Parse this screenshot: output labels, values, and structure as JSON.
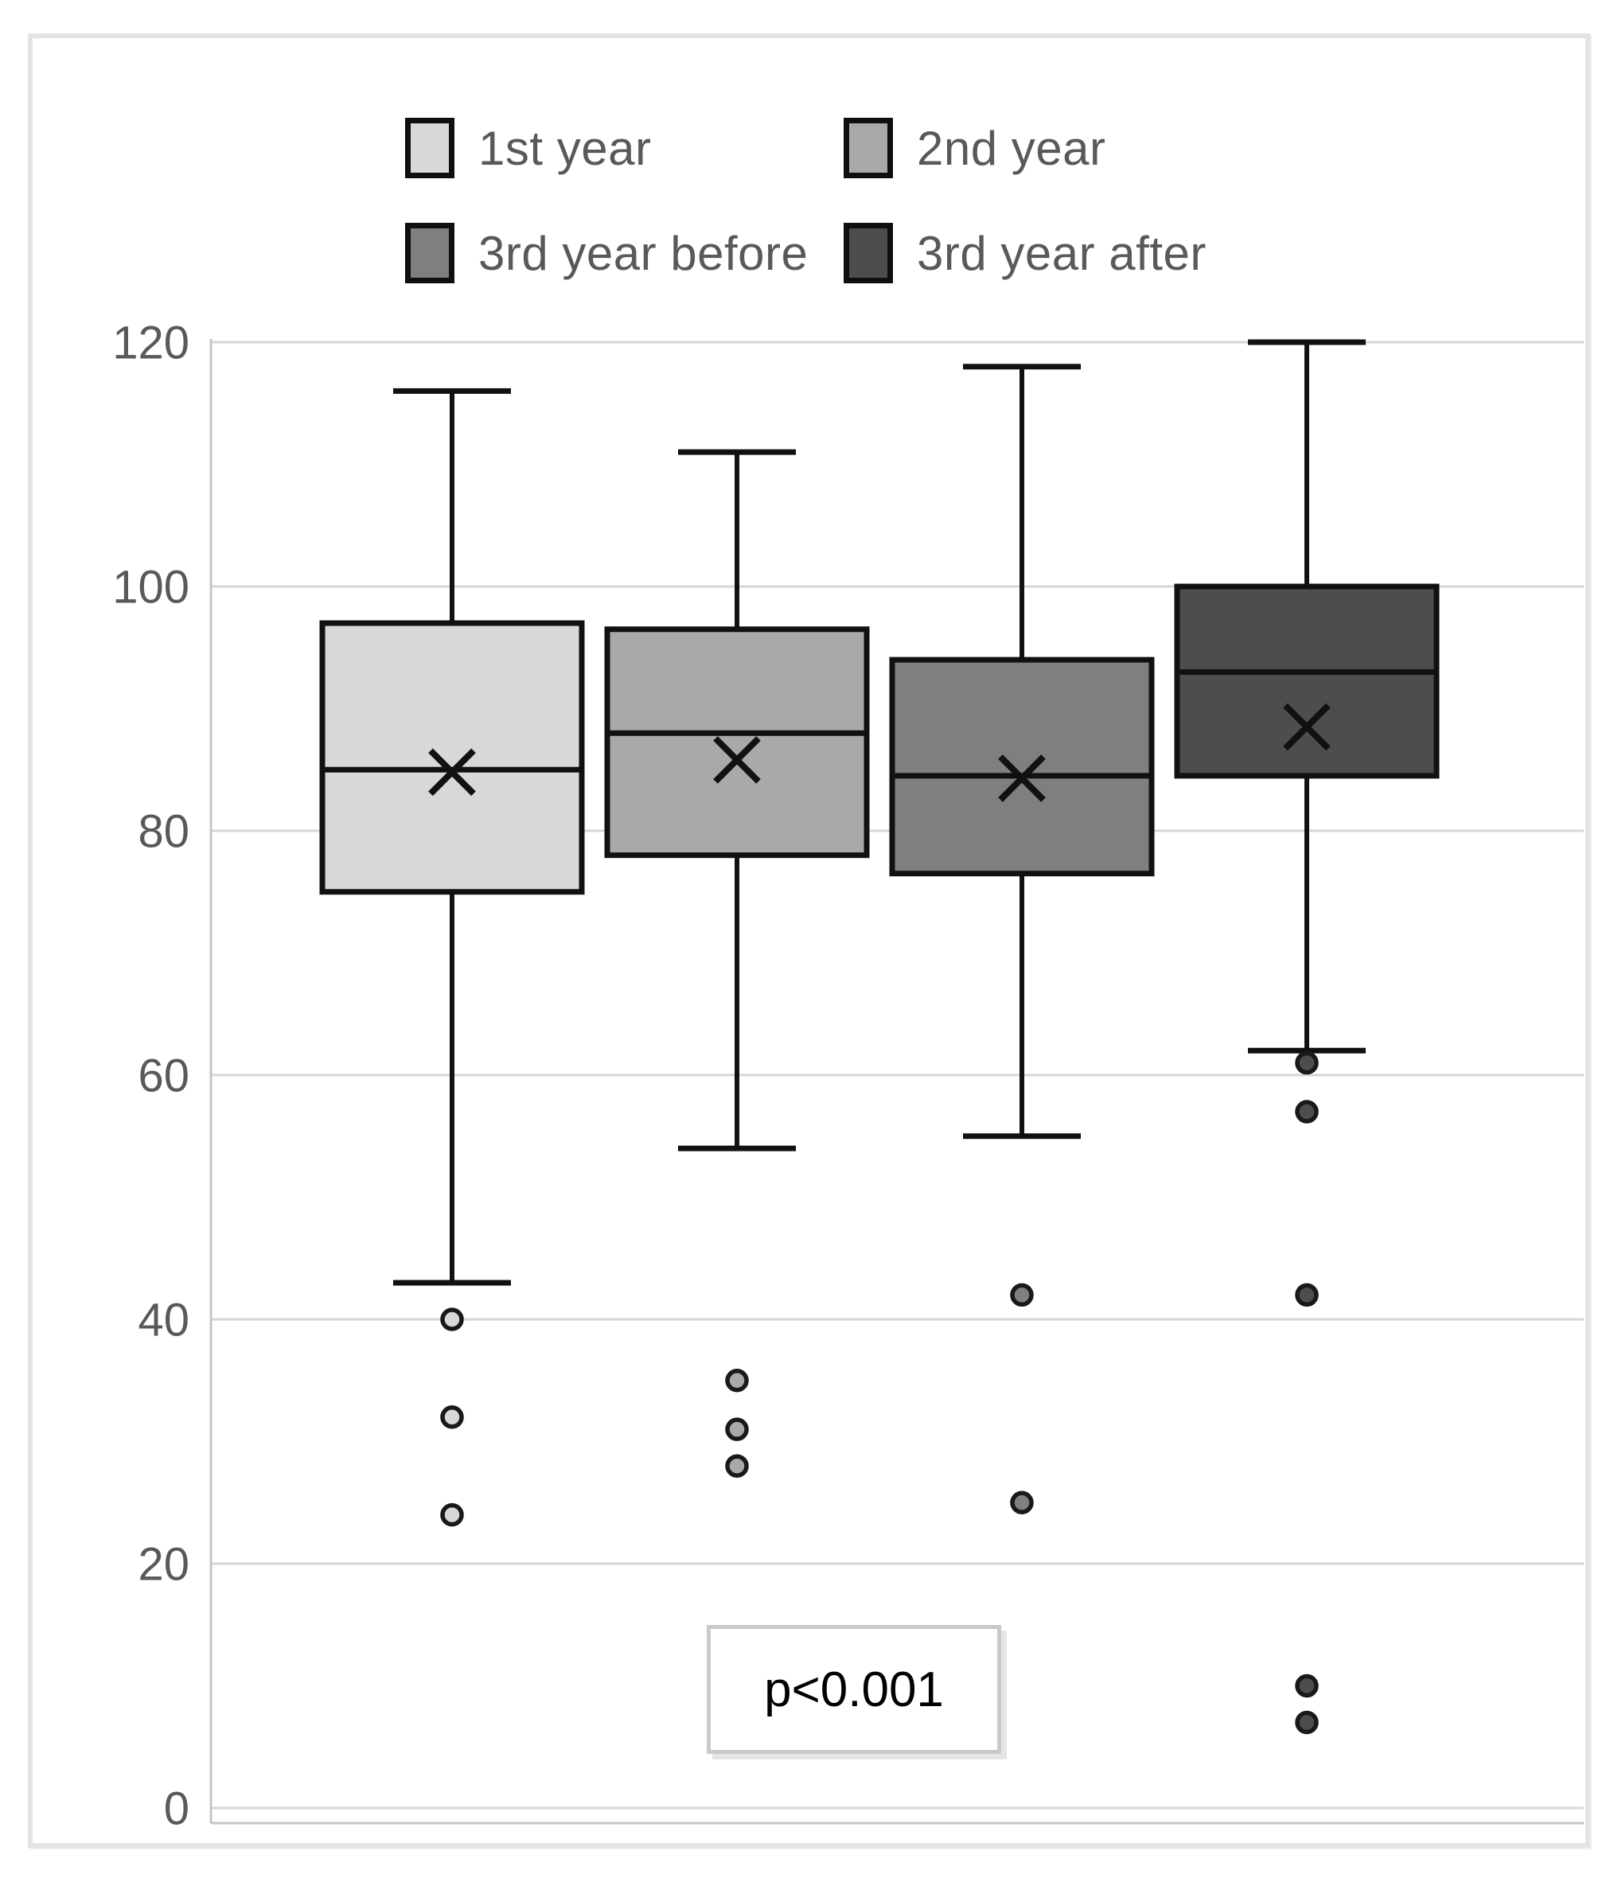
{
  "chart_data": {
    "type": "boxplot",
    "title": "",
    "categories": [
      "1st year",
      "2nd year",
      "3rd year before",
      "3rd year after"
    ],
    "ylim": [
      0,
      120
    ],
    "yticks": [
      120,
      100,
      80,
      60,
      40,
      20,
      0
    ],
    "grid": "horizontal",
    "legend_position": "top",
    "annotation": "p<0.001",
    "colors": {
      "gridline": "#d6d6d6",
      "axis_border": "#c6c6c6",
      "box_outline": "#111111",
      "tick_text": "#595959",
      "legend_text": "#595959"
    },
    "series": [
      {
        "name": "1st year",
        "color": "#d8d8d8",
        "whisker_low": 43,
        "q1": 75,
        "median": 85,
        "mean": 84.8,
        "q3": 97,
        "whisker_high": 116,
        "outliers": [
          40,
          32,
          24
        ]
      },
      {
        "name": "2nd year",
        "color": "#a9a9a9",
        "whisker_low": 54,
        "q1": 78,
        "median": 88,
        "mean": 85.8,
        "q3": 96.5,
        "whisker_high": 111,
        "outliers": [
          35,
          31,
          28
        ]
      },
      {
        "name": "3rd year before",
        "color": "#7f7f7f",
        "whisker_low": 55,
        "q1": 76.5,
        "median": 84.5,
        "mean": 84.3,
        "q3": 94,
        "whisker_high": 118,
        "outliers": [
          42,
          25
        ]
      },
      {
        "name": "3rd year after",
        "color": "#4d4d4d",
        "whisker_low": 62,
        "q1": 84.5,
        "median": 93,
        "mean": 88.5,
        "q3": 100,
        "whisker_high": 120,
        "outliers": [
          61,
          57,
          42,
          10,
          7
        ]
      }
    ]
  }
}
